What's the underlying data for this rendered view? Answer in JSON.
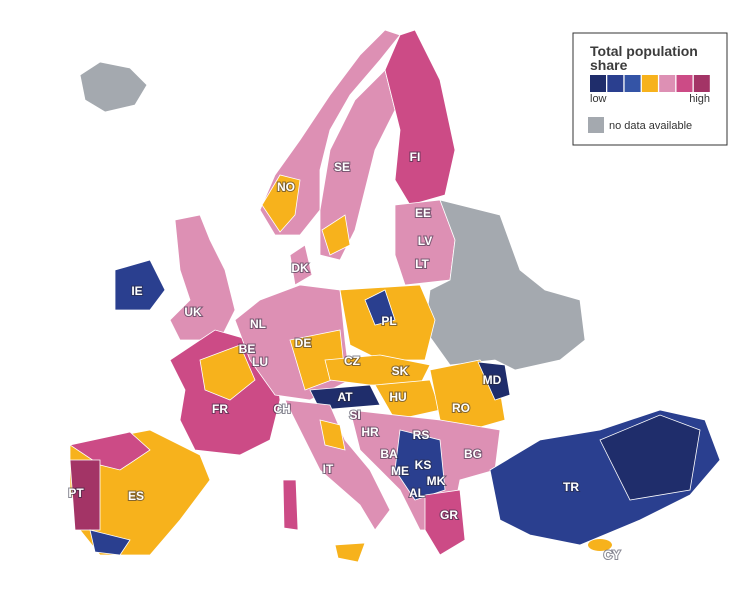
{
  "legend": {
    "title": "Total population share",
    "low": "low",
    "high": "high",
    "no_data": "no data available",
    "colors": [
      "#1f2d6b",
      "#2a3f8f",
      "#3454a6",
      "#f7b21c",
      "#dd90b4",
      "#cc4b86",
      "#a33466"
    ],
    "no_data_color": "#a4a9af"
  },
  "countries": [
    "FI",
    "SE",
    "NO",
    "EE",
    "LV",
    "LT",
    "DK",
    "IE",
    "UK",
    "NL",
    "PL",
    "DE",
    "BE",
    "LU",
    "CZ",
    "SK",
    "MD",
    "AT",
    "FR",
    "CH",
    "HU",
    "SI",
    "RO",
    "HR",
    "RS",
    "BA",
    "BG",
    "ME",
    "KS",
    "IT",
    "MK",
    "TR",
    "PT",
    "ES",
    "AL",
    "GR",
    "CY"
  ]
}
